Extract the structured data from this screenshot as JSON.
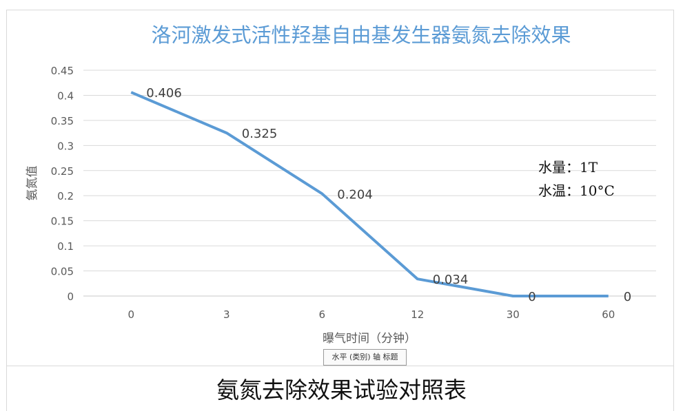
{
  "chart_data": {
    "type": "line",
    "title": "洛河激发式活性羟基自由基发生器氨氮去除效果",
    "xlabel": "曝气时间（分钟）",
    "ylabel": "氨氮值",
    "categories": [
      "0",
      "3",
      "6",
      "12",
      "30",
      "60"
    ],
    "series": [
      {
        "values": [
          0.406,
          0.325,
          0.204,
          0.034,
          0,
          0
        ],
        "labels": [
          "0.406",
          "0.325",
          "0.204",
          "0.034",
          "0",
          "0"
        ]
      }
    ],
    "ylim": [
      0,
      0.45
    ],
    "yticks": [
      "0",
      "0.05",
      "0.1",
      "0.15",
      "0.2",
      "0.25",
      "0.3",
      "0.35",
      "0.4",
      "0.45"
    ],
    "grid": true,
    "line_color": "#5b9bd5",
    "title_color": "#5b9bd5",
    "annotations": [
      "水量：1T",
      "水温：10°C"
    ]
  },
  "tooltip": "水平 (类别) 轴 标题",
  "caption": "氨氮去除效果试验对照表"
}
